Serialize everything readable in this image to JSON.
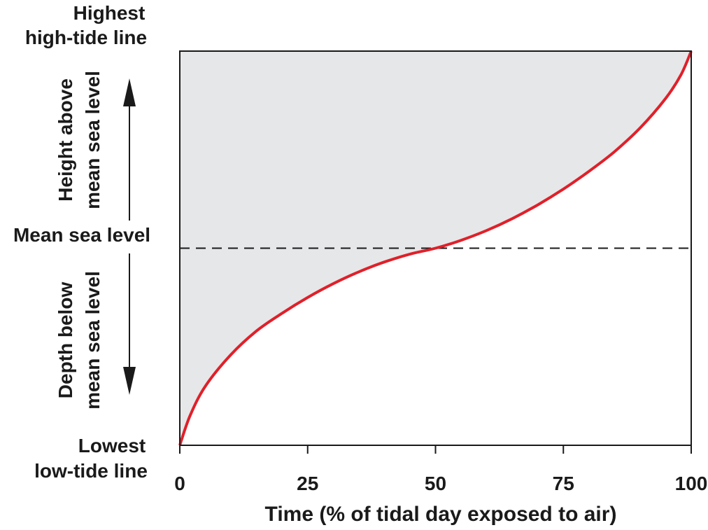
{
  "chart_data": {
    "type": "area",
    "title": "",
    "xlabel": "Time (% of tidal day exposed to air)",
    "ylabel": "",
    "xlim": [
      0,
      100
    ],
    "ylim": [
      -1,
      1
    ],
    "x_ticks": [
      0,
      25,
      50,
      75,
      100
    ],
    "x_tick_labels": [
      "0",
      "25",
      "50",
      "75",
      "100"
    ],
    "grid": false,
    "shaded_region": "above curve",
    "colors": {
      "curve": "#e0202a",
      "fill": "#e6e7e8",
      "axis": "#1a1a1a"
    },
    "reference_line": {
      "y": 0,
      "label": "Mean sea level",
      "style": "dashed"
    },
    "y_labels": {
      "top": [
        "Highest",
        "high-tide line"
      ],
      "middle": "Mean sea level",
      "bottom": [
        "Lowest",
        "low-tide line"
      ],
      "above": [
        "Height above",
        "mean sea level"
      ],
      "below": [
        "Depth below",
        "mean sea level"
      ]
    },
    "series": [
      {
        "x": [
          0,
          2,
          5,
          10,
          15,
          20,
          25,
          30,
          35,
          40,
          45,
          50,
          55,
          60,
          65,
          70,
          75,
          80,
          85,
          90,
          95,
          98,
          100
        ],
        "y": [
          -1.0,
          -0.85,
          -0.7,
          -0.54,
          -0.42,
          -0.33,
          -0.25,
          -0.18,
          -0.12,
          -0.07,
          -0.03,
          0.0,
          0.04,
          0.09,
          0.15,
          0.22,
          0.3,
          0.39,
          0.49,
          0.61,
          0.76,
          0.88,
          1.0
        ]
      }
    ]
  }
}
